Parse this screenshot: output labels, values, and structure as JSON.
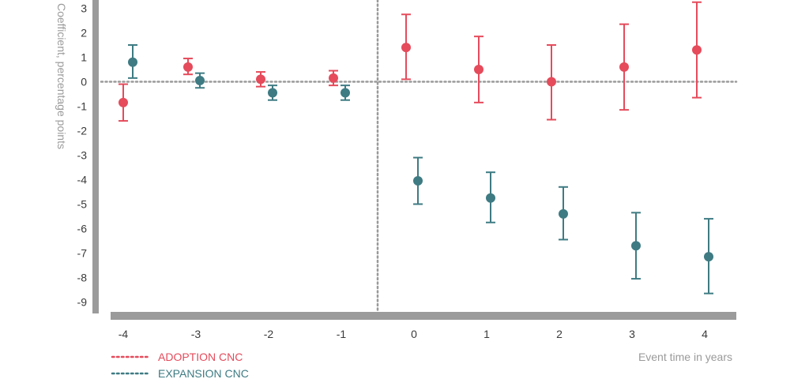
{
  "chart_data": {
    "type": "scatter",
    "title": "",
    "xlabel": "Event time in years",
    "ylabel": "Coefficient, percentage points",
    "x_ticks": [
      "-4",
      "-3",
      "-2",
      "-1",
      "0",
      "1",
      "2",
      "3",
      "4"
    ],
    "y_ticks": [
      "3",
      "2",
      "1",
      "0",
      "-1",
      "-2",
      "-3",
      "-4",
      "-5",
      "-6",
      "-7",
      "-8",
      "-9"
    ],
    "ylim": [
      -9.6,
      3.3
    ],
    "reference_lines": {
      "y": 0,
      "x_between": [
        -1,
        0
      ]
    },
    "legend_position": "bottom-left",
    "series": [
      {
        "name": "ADOPTION CNC",
        "color": "#e54b5b",
        "points": [
          {
            "x": -4,
            "y": -0.85,
            "lo": -1.6,
            "hi": -0.1
          },
          {
            "x": -3,
            "y": 0.6,
            "lo": 0.3,
            "hi": 0.95
          },
          {
            "x": -2,
            "y": 0.1,
            "lo": -0.2,
            "hi": 0.4
          },
          {
            "x": -1,
            "y": 0.15,
            "lo": -0.15,
            "hi": 0.45
          },
          {
            "x": 0,
            "y": 1.4,
            "lo": 0.1,
            "hi": 2.75
          },
          {
            "x": 1,
            "y": 0.5,
            "lo": -0.85,
            "hi": 1.85
          },
          {
            "x": 2,
            "y": 0.0,
            "lo": -1.55,
            "hi": 1.5
          },
          {
            "x": 3,
            "y": 0.6,
            "lo": -1.15,
            "hi": 2.35
          },
          {
            "x": 4,
            "y": 1.3,
            "lo": -0.65,
            "hi": 3.25
          }
        ]
      },
      {
        "name": "EXPANSION CNC",
        "color": "#3e7b83",
        "points": [
          {
            "x": -4,
            "y": 0.8,
            "lo": 0.15,
            "hi": 1.5
          },
          {
            "x": -3,
            "y": 0.05,
            "lo": -0.25,
            "hi": 0.35
          },
          {
            "x": -2,
            "y": -0.45,
            "lo": -0.75,
            "hi": -0.15
          },
          {
            "x": -1,
            "y": -0.45,
            "lo": -0.75,
            "hi": -0.15
          },
          {
            "x": 0,
            "y": -4.05,
            "lo": -5.0,
            "hi": -3.1
          },
          {
            "x": 1,
            "y": -4.75,
            "lo": -5.75,
            "hi": -3.7
          },
          {
            "x": 2,
            "y": -5.4,
            "lo": -6.45,
            "hi": -4.3
          },
          {
            "x": 3,
            "y": -6.7,
            "lo": -8.05,
            "hi": -5.35
          },
          {
            "x": 4,
            "y": -7.15,
            "lo": -8.65,
            "hi": -5.6
          }
        ]
      }
    ]
  }
}
